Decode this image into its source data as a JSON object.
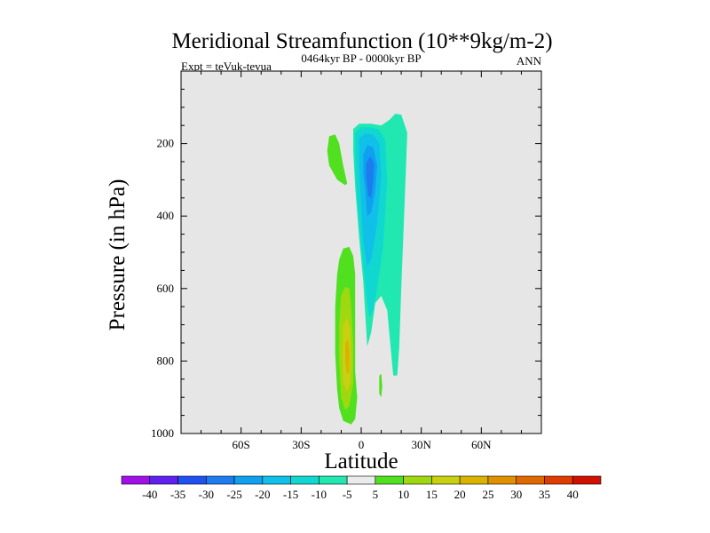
{
  "chart_data": {
    "type": "heatmap",
    "title": "Meridional Streamfunction (10**9kg/m-2)",
    "subtitle_left": "Expt = teVuk-tevua",
    "subtitle_center": "0464kyr BP - 0000kyr BP",
    "subtitle_right": "ANN",
    "xlabel": "Latitude",
    "ylabel": "Pressure (in hPa)",
    "xlim": [
      -90,
      90
    ],
    "ylim": [
      1000,
      0
    ],
    "y_reversed": true,
    "x_ticks": [
      {
        "value": -60,
        "label": "60S"
      },
      {
        "value": -30,
        "label": "30S"
      },
      {
        "value": 0,
        "label": "0"
      },
      {
        "value": 30,
        "label": "30N"
      },
      {
        "value": 60,
        "label": "60N"
      }
    ],
    "y_ticks": [
      {
        "value": 200,
        "label": "200"
      },
      {
        "value": 400,
        "label": "400"
      },
      {
        "value": 600,
        "label": "600"
      },
      {
        "value": 800,
        "label": "800"
      },
      {
        "value": 1000,
        "label": "1000"
      }
    ],
    "background_color": "#e6e6e6",
    "colorbar": {
      "labels": [
        "-40",
        "-35",
        "-30",
        "-25",
        "-20",
        "-15",
        "-10",
        "-5",
        "5",
        "10",
        "15",
        "20",
        "25",
        "30",
        "35",
        "40"
      ],
      "colors": [
        "#a010e8",
        "#6020f0",
        "#2050f0",
        "#1c7cf0",
        "#10a0f0",
        "#10c0e8",
        "#10d8d0",
        "#20e8b0",
        "#ebebeb",
        "#50e020",
        "#a0d810",
        "#c8d010",
        "#d8b400",
        "#e09000",
        "#e06800",
        "#e03c00",
        "#d01000"
      ]
    },
    "regions": [
      {
        "name": "southern-hemisphere-upper-cell",
        "level": 10,
        "color": "#50e020",
        "outline": [
          [
            -16,
            180
          ],
          [
            -13,
            175
          ],
          [
            -11,
            200
          ],
          [
            -9,
            260
          ],
          [
            -7,
            310
          ],
          [
            -8,
            315
          ],
          [
            -12,
            300
          ],
          [
            -16,
            260
          ],
          [
            -17,
            220
          ]
        ]
      },
      {
        "name": "northern-negative-cell-outer",
        "level": -5,
        "color": "#20e8b0",
        "outline": [
          [
            -4,
            160
          ],
          [
            -1,
            145
          ],
          [
            5,
            145
          ],
          [
            10,
            150
          ],
          [
            14,
            135
          ],
          [
            17,
            118
          ],
          [
            20,
            120
          ],
          [
            23,
            170
          ],
          [
            22,
            320
          ],
          [
            20,
            600
          ],
          [
            19,
            760
          ],
          [
            18,
            840
          ],
          [
            16,
            840
          ],
          [
            13,
            660
          ],
          [
            10,
            620
          ],
          [
            7,
            640
          ],
          [
            5,
            720
          ],
          [
            3,
            760
          ],
          [
            1,
            580
          ],
          [
            -1,
            460
          ],
          [
            -3,
            320
          ],
          [
            -4,
            220
          ]
        ]
      },
      {
        "name": "northern-negative-cell-10",
        "level": -10,
        "color": "#10d8d0",
        "outline": [
          [
            -3,
            170
          ],
          [
            0,
            155
          ],
          [
            5,
            155
          ],
          [
            9,
            162
          ],
          [
            12,
            190
          ],
          [
            13,
            300
          ],
          [
            11,
            480
          ],
          [
            8,
            600
          ],
          [
            6,
            660
          ],
          [
            4,
            680
          ],
          [
            2,
            590
          ],
          [
            0,
            480
          ],
          [
            -2,
            360
          ],
          [
            -3,
            250
          ]
        ]
      },
      {
        "name": "northern-negative-cell-15",
        "level": -15,
        "color": "#10c0e8",
        "outline": [
          [
            -1,
            185
          ],
          [
            2,
            172
          ],
          [
            6,
            175
          ],
          [
            9,
            200
          ],
          [
            10,
            290
          ],
          [
            8,
            420
          ],
          [
            5,
            520
          ],
          [
            3,
            540
          ],
          [
            1,
            470
          ],
          [
            0,
            370
          ],
          [
            -1,
            270
          ]
        ]
      },
      {
        "name": "northern-negative-cell-20",
        "level": -20,
        "color": "#10a0f0",
        "outline": [
          [
            1,
            230
          ],
          [
            3,
            205
          ],
          [
            6,
            210
          ],
          [
            8,
            260
          ],
          [
            7,
            330
          ],
          [
            5,
            390
          ],
          [
            3,
            400
          ],
          [
            2,
            330
          ],
          [
            1,
            280
          ]
        ]
      },
      {
        "name": "northern-negative-cell-core",
        "level": -25,
        "color": "#1c7cf0",
        "outline": [
          [
            2.5,
            255
          ],
          [
            4.5,
            235
          ],
          [
            6.5,
            255
          ],
          [
            6,
            305
          ],
          [
            5,
            350
          ],
          [
            3.5,
            345
          ],
          [
            2.5,
            295
          ]
        ]
      },
      {
        "name": "southern-positive-cell-outer",
        "level": 10,
        "color": "#50e020",
        "outline": [
          [
            -11,
            520
          ],
          [
            -9,
            490
          ],
          [
            -6,
            485
          ],
          [
            -4,
            510
          ],
          [
            -3,
            560
          ],
          [
            -3,
            700
          ],
          [
            -3,
            830
          ],
          [
            -2,
            900
          ],
          [
            -3,
            960
          ],
          [
            -5,
            975
          ],
          [
            -9,
            965
          ],
          [
            -11,
            930
          ],
          [
            -12,
            880
          ],
          [
            -13,
            780
          ],
          [
            -13,
            650
          ],
          [
            -12,
            560
          ]
        ]
      },
      {
        "name": "southern-positive-cell-15",
        "level": 15,
        "color": "#a0d810",
        "outline": [
          [
            -10,
            620
          ],
          [
            -8,
            595
          ],
          [
            -6,
            600
          ],
          [
            -5,
            650
          ],
          [
            -4,
            760
          ],
          [
            -4,
            860
          ],
          [
            -6,
            925
          ],
          [
            -8,
            935
          ],
          [
            -10,
            900
          ],
          [
            -11,
            800
          ],
          [
            -11,
            700
          ]
        ]
      },
      {
        "name": "southern-positive-cell-20",
        "level": 20,
        "color": "#c8d010",
        "outline": [
          [
            -9,
            700
          ],
          [
            -7,
            680
          ],
          [
            -5.5,
            710
          ],
          [
            -5,
            800
          ],
          [
            -5.5,
            860
          ],
          [
            -7,
            885
          ],
          [
            -9,
            860
          ],
          [
            -9.5,
            780
          ]
        ]
      },
      {
        "name": "southern-positive-cell-core",
        "level": 25,
        "color": "#d8b400",
        "outline": [
          [
            -8,
            750
          ],
          [
            -6.5,
            740
          ],
          [
            -5.8,
            780
          ],
          [
            -6,
            830
          ],
          [
            -7.2,
            835
          ],
          [
            -8,
            800
          ]
        ]
      },
      {
        "name": "northern-small-positive-blob",
        "level": 5,
        "color": "#50e020",
        "outline": [
          [
            9,
            840
          ],
          [
            10,
            835
          ],
          [
            10.5,
            870
          ],
          [
            10,
            900
          ],
          [
            9,
            890
          ]
        ]
      }
    ]
  }
}
